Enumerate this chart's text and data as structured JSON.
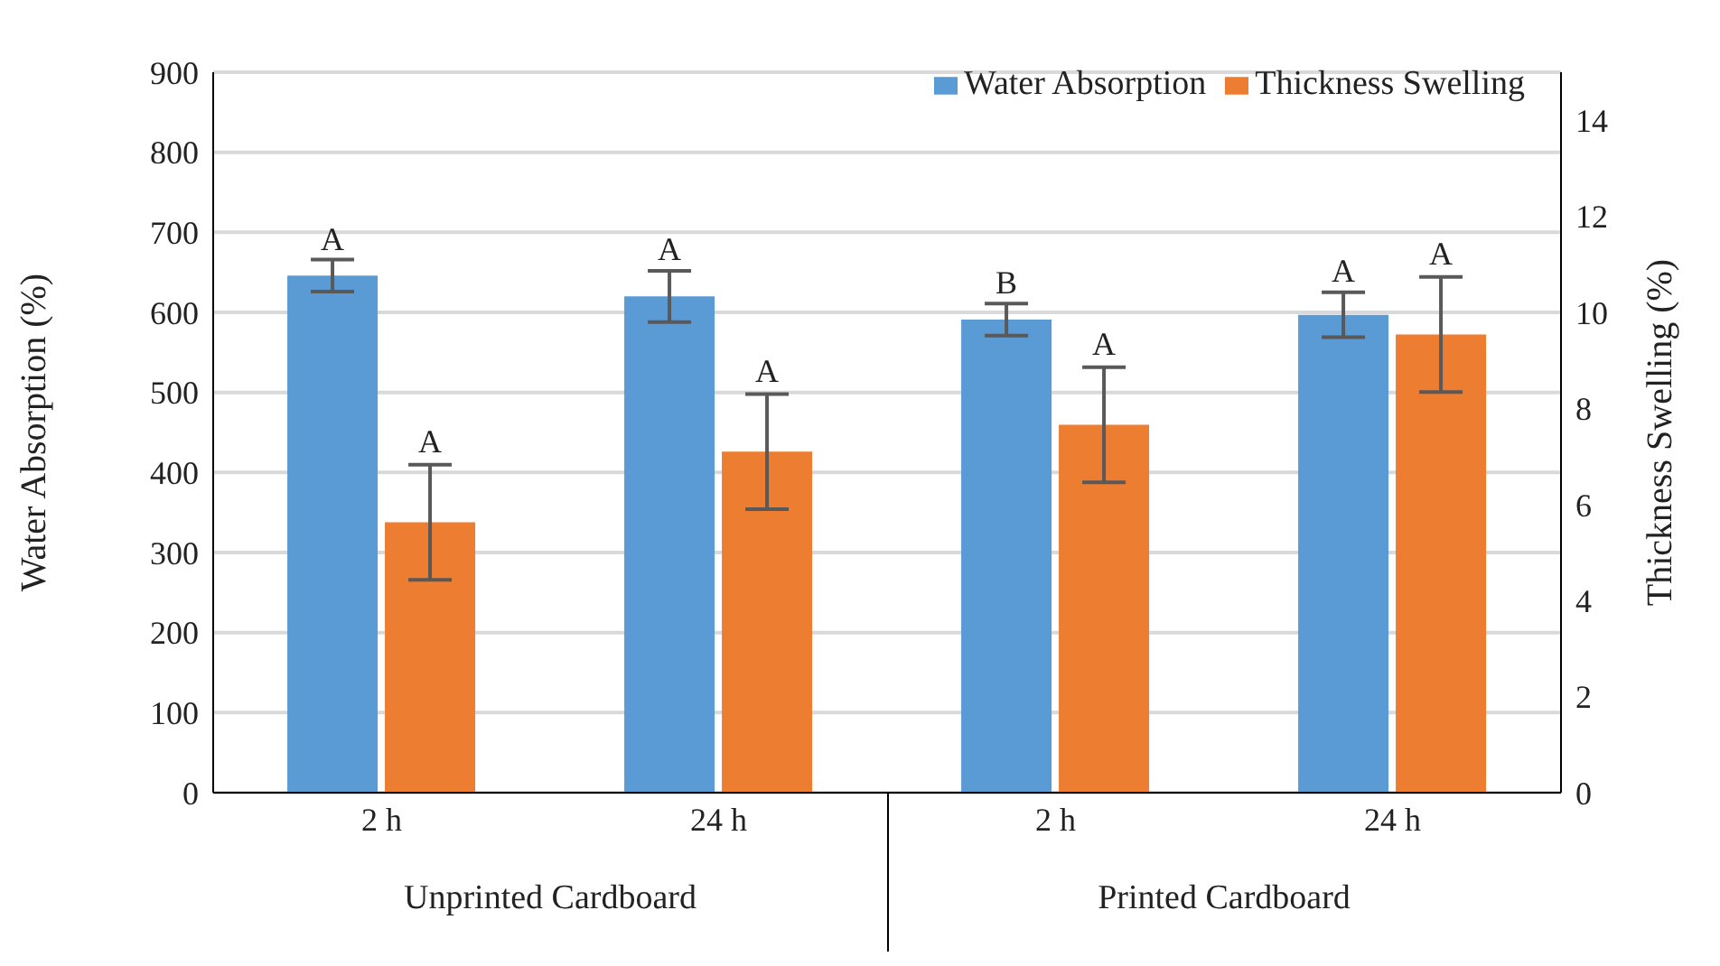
{
  "chart_data": {
    "type": "bar",
    "categories": [
      "2 h",
      "24 h",
      "2 h",
      "24 h"
    ],
    "series": [
      {
        "name": "Water Absorption",
        "color": "#5b9bd5",
        "values": [
          646,
          620,
          591,
          597
        ],
        "errors": [
          20,
          32,
          20,
          28
        ],
        "value_labels": [
          "A",
          "A",
          "B",
          "A"
        ]
      },
      {
        "name": "Thickness Swelling",
        "color": "#ed7d31",
        "axis": "y2",
        "values": [
          5.63,
          7.1,
          7.66,
          9.54
        ],
        "errors": [
          1.2,
          1.2,
          1.2,
          1.2
        ],
        "value_labels": [
          "A",
          "A",
          "A",
          "A"
        ]
      }
    ],
    "ylabel": "Water Absorption (%)",
    "y2label": "Thickness Swelling (%)",
    "ylim": [
      0,
      900
    ],
    "yticks": [
      0,
      100,
      200,
      300,
      400,
      500,
      600,
      700,
      800,
      900
    ],
    "y2lim": [
      0,
      15
    ],
    "y2ticks": [
      0,
      2,
      4,
      6,
      8,
      10,
      12,
      14
    ],
    "annotations": [
      "Unprinted Cardboard",
      "Printed Cardboard"
    ],
    "grid": "y",
    "legend": "top right"
  }
}
